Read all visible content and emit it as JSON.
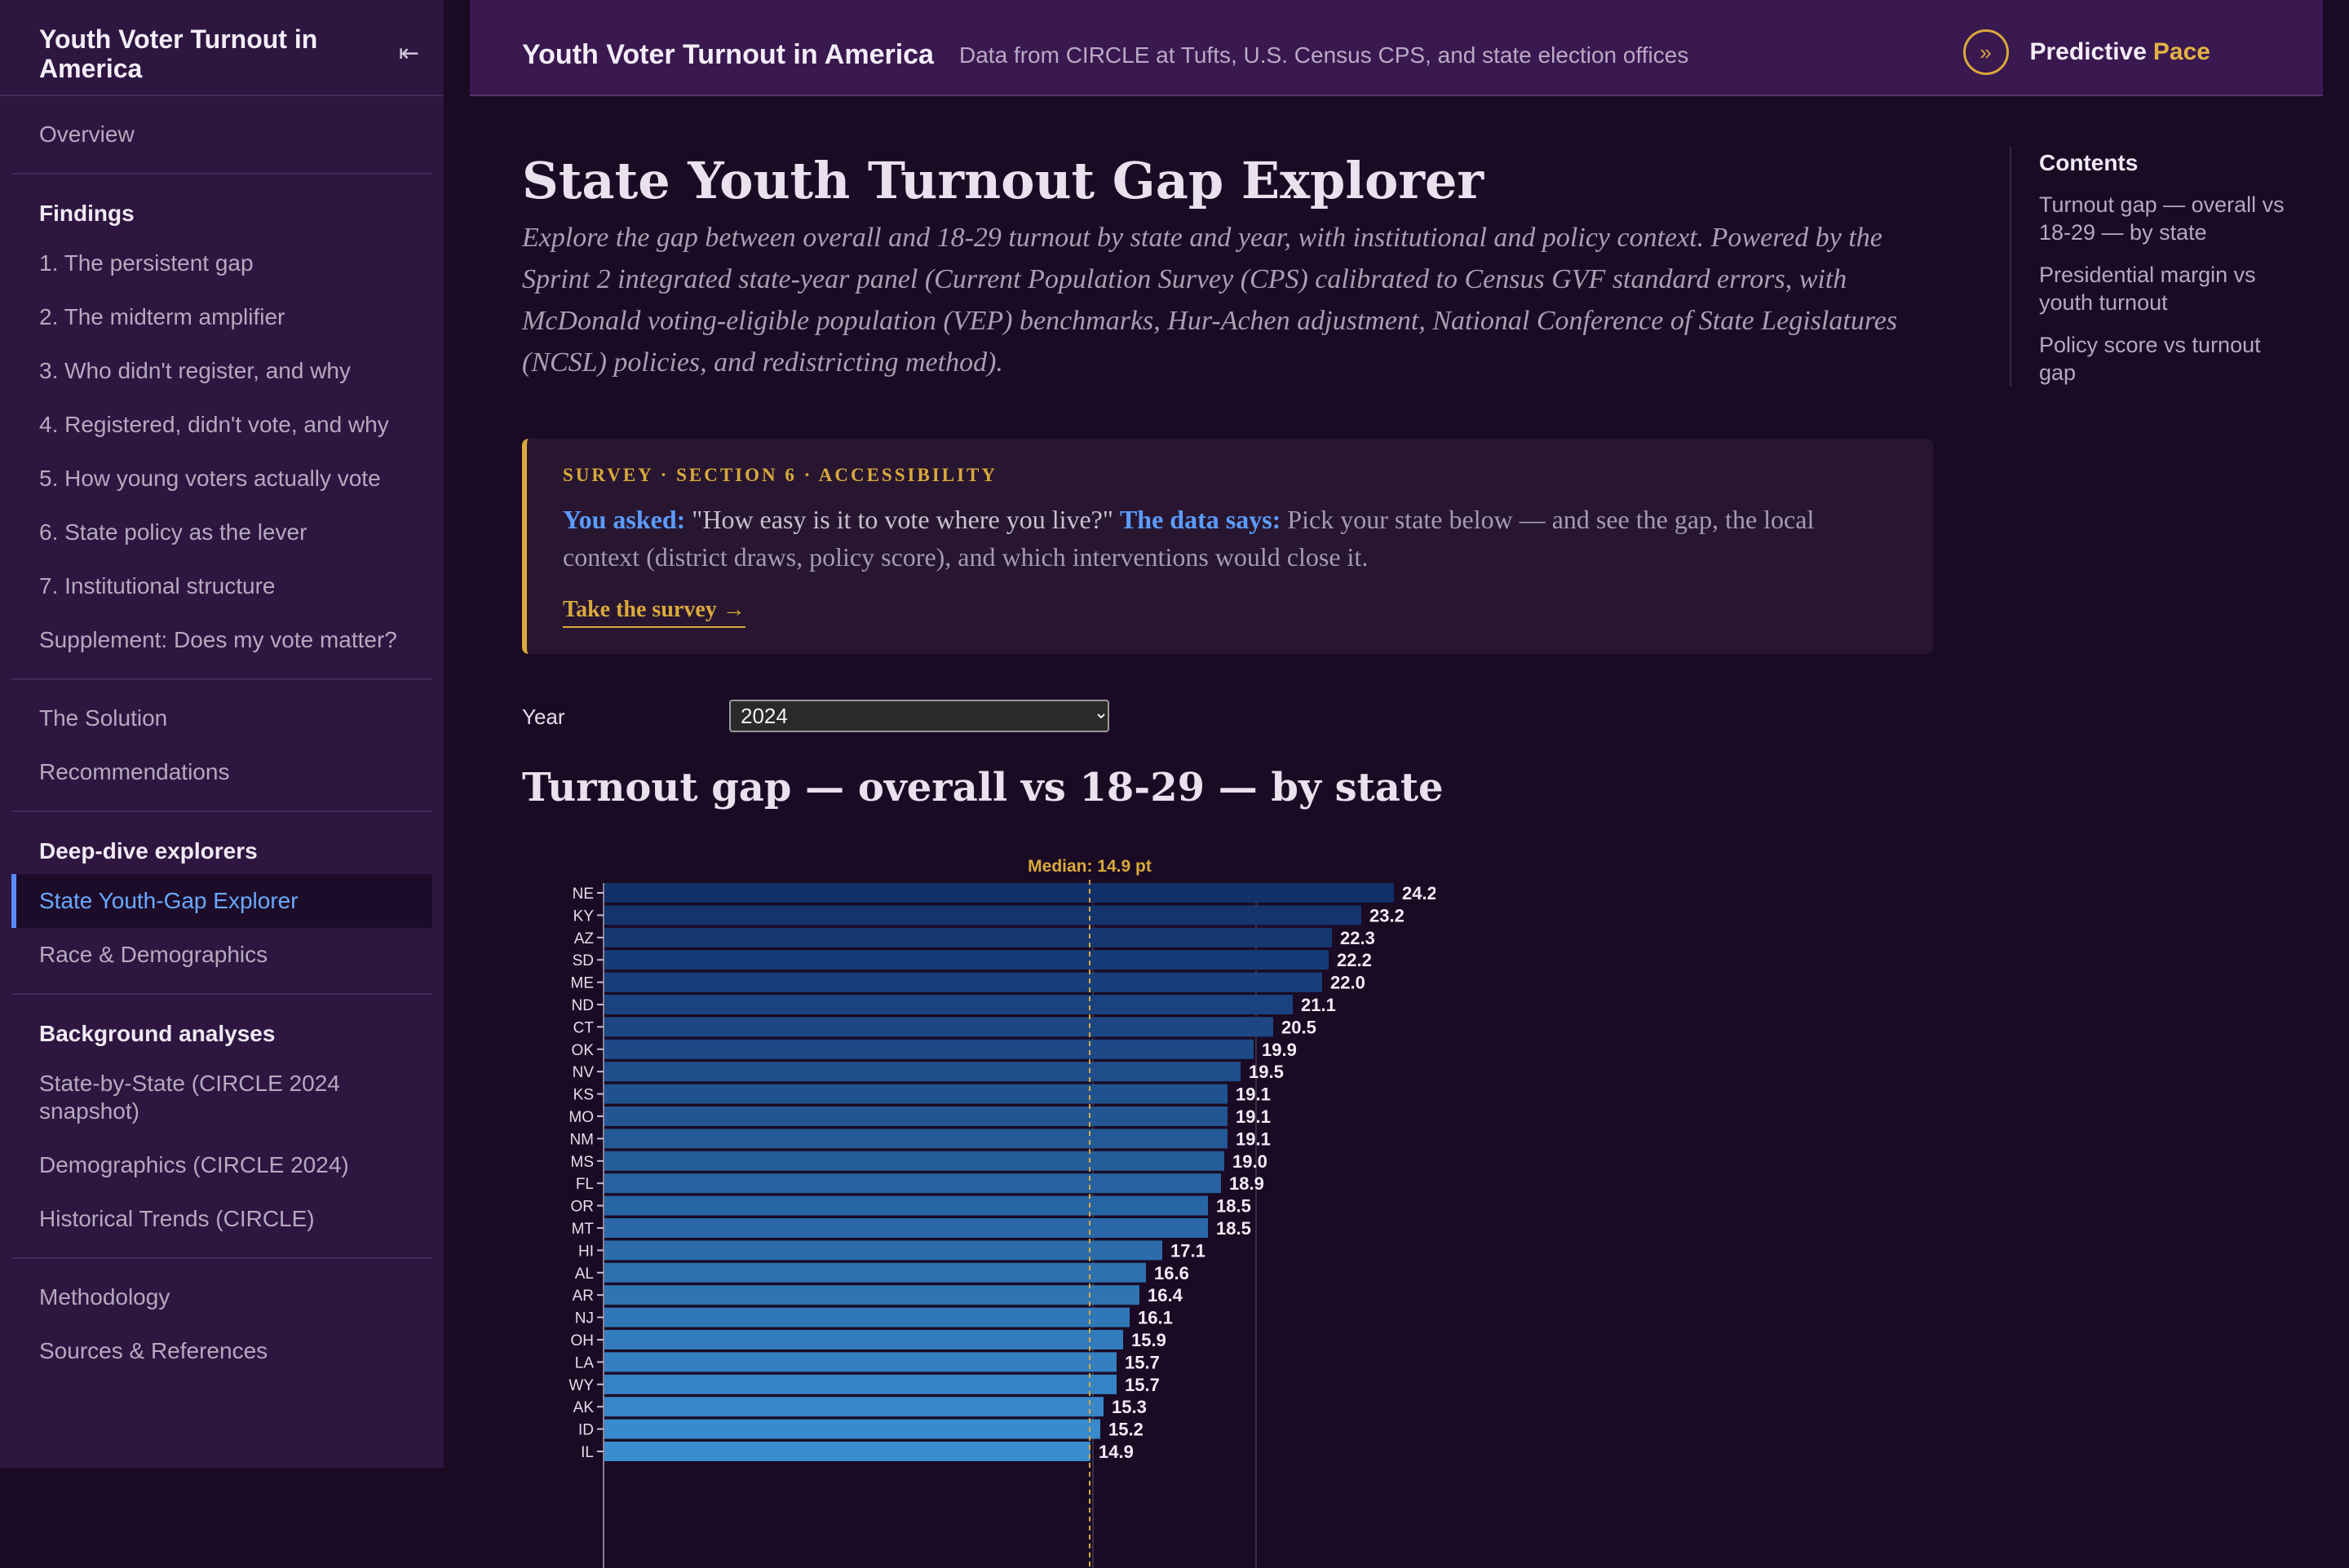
{
  "sidebar": {
    "title": "Youth Voter Turnout in America",
    "overview": "Overview",
    "findings_head": "Findings",
    "findings": [
      "1. The persistent gap",
      "2. The midterm amplifier",
      "3. Who didn't register, and why",
      "4. Registered, didn't vote, and why",
      "5. How young voters actually vote",
      "6. State policy as the lever",
      "7. Institutional structure",
      "Supplement: Does my vote matter?"
    ],
    "solution": "The Solution",
    "recommendations": "Recommendations",
    "deep_head": "Deep-dive explorers",
    "deep": [
      "State Youth-Gap Explorer",
      "Race & Demographics"
    ],
    "background_head": "Background analyses",
    "background": [
      "State-by-State (CIRCLE 2024 snapshot)",
      "Demographics (CIRCLE 2024)",
      "Historical Trends (CIRCLE)"
    ],
    "methodology": "Methodology",
    "sources": "Sources & References"
  },
  "topbar": {
    "title": "Youth Voter Turnout in America",
    "subtitle": "Data from CIRCLE at Tufts, U.S. Census CPS, and state election offices",
    "brand_a": "Predictive",
    "brand_b": "Pace",
    "brand_icon": "chevrons-right-icon"
  },
  "main": {
    "title": "State Youth Turnout Gap Explorer",
    "intro": "Explore the gap between overall and 18-29 turnout by state and year, with institutional and policy context. Powered by the Sprint 2 integrated state-year panel (Current Population Survey (CPS) calibrated to Census GVF standard errors, with McDonald voting-eligible population (VEP) benchmarks, Hur-Achen adjustment, National Conference of State Legislatures (NCSL) policies, and redistricting method).",
    "callout": {
      "kicker": "SURVEY · SECTION 6 · ACCESSIBILITY",
      "ask_label": "You asked:",
      "question": "\"How easy is it to vote where you live?\"",
      "data_label": "The data says:",
      "answer": "Pick your state below — and see the gap, the local context (district draws, policy score), and which interventions would close it.",
      "cta": "Take the survey →"
    },
    "year_label": "Year",
    "year_value": "2024",
    "section_title": "Turnout gap — overall vs 18-29 — by state"
  },
  "toc": {
    "heading": "Contents",
    "items": [
      "Turnout gap — overall vs 18-29 — by state",
      "Presidential margin vs youth turnout",
      "Policy score vs turnout gap"
    ]
  },
  "chart_data": {
    "type": "bar",
    "orientation": "horizontal",
    "median_label": "Median: 14.9 pt",
    "median": 14.9,
    "xlim": [
      0,
      25
    ],
    "categories": [
      "NE",
      "KY",
      "AZ",
      "SD",
      "ME",
      "ND",
      "CT",
      "OK",
      "NV",
      "KS",
      "MO",
      "NM",
      "MS",
      "FL",
      "OR",
      "MT",
      "HI",
      "AL",
      "AR",
      "NJ",
      "OH",
      "LA",
      "WY",
      "AK",
      "ID",
      "IL"
    ],
    "values": [
      24.2,
      23.2,
      22.3,
      22.2,
      22.0,
      21.1,
      20.5,
      19.9,
      19.5,
      19.1,
      19.1,
      19.1,
      19.0,
      18.9,
      18.5,
      18.5,
      17.1,
      16.6,
      16.4,
      16.1,
      15.9,
      15.7,
      15.7,
      15.3,
      15.2,
      14.9
    ],
    "value_labels": [
      "24.2",
      "23.2",
      "22.3",
      "22.2",
      "22.0",
      "21.1",
      "20.5",
      "19.9",
      "19.5",
      "19.1",
      "19.1",
      "19.1",
      "19.0",
      "18.9",
      "18.5",
      "18.5",
      "17.1",
      "16.6",
      "16.4",
      "16.1",
      "15.9",
      "15.7",
      "15.7",
      "15.3",
      "15.2",
      "14.9"
    ],
    "colors": {
      "dark": "#12306a",
      "light": "#3a8ed0",
      "median": "#d9a93b"
    }
  }
}
